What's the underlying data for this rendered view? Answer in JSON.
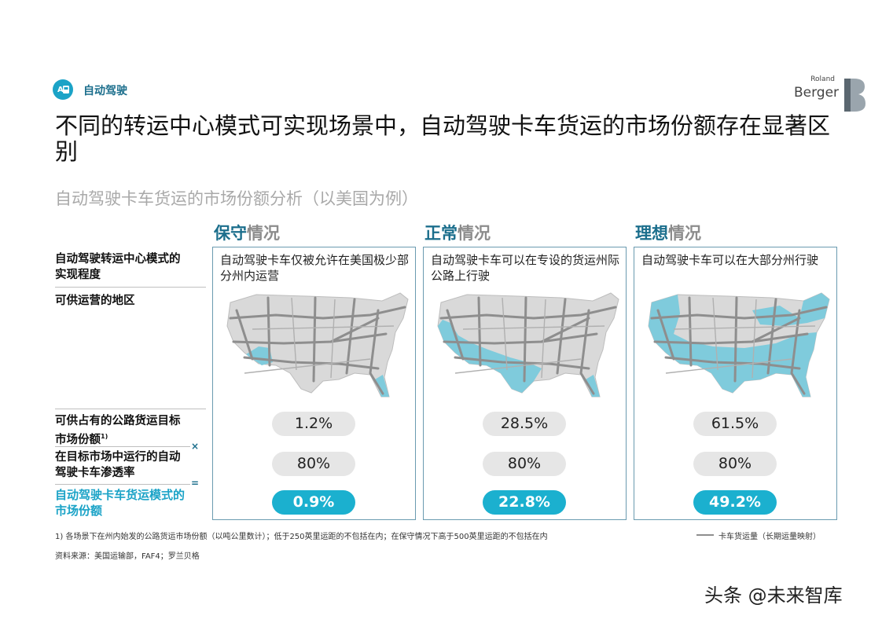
{
  "header": {
    "tag_label": "自动驾驶",
    "logo_small": "Roland",
    "logo_big": "Berger",
    "title": "不同的转运中心模式可实现场景中，自动驾驶卡车货运的市场份额存在显著区别",
    "subtitle": "自动驾驶卡车货运的市场份额分析（以美国为例）"
  },
  "row_labels": {
    "implementation": "自动驾驶转运中心模式的实现程度",
    "regions": "可供运营的地区",
    "target_share": "可供占有的公路货运目标市场份额",
    "target_share_sup": "1)",
    "penetration": "在目标市场中运行的自动驾驶卡车渗透率",
    "result": "自动驾驶卡车货运模式的市场份额"
  },
  "operators": {
    "times": "×",
    "equals": "="
  },
  "scenarios": [
    {
      "name_accent": "保守",
      "name_rest": "情况",
      "desc": "自动驾驶卡车仅被允许在美国极少部分州内运营",
      "target_share": "1.2%",
      "penetration": "80%",
      "result": "0.9%"
    },
    {
      "name_accent": "正常",
      "name_rest": "情况",
      "desc": "自动驾驶卡车可以在专设的货运州际公路上行驶",
      "target_share": "28.5%",
      "penetration": "80%",
      "result": "22.8%"
    },
    {
      "name_accent": "理想",
      "name_rest": "情况",
      "desc": "自动驾驶卡车可以在大部分州行驶",
      "target_share": "61.5%",
      "penetration": "80%",
      "result": "49.2%"
    }
  ],
  "footer": {
    "note": "1) 各场景下在州内始发的公路货运市场份额（以吨公里数计）；低于250英里运距的不包括在内；在保守情况下高于500英里运距的不包括在内",
    "source": "资料来源：美国运输部，FAF4；罗兰贝格",
    "legend": "卡车货运量（长期运量映射）"
  },
  "watermark": "头条 @未来智库",
  "colors": {
    "accent": "#1b6e8c",
    "highlight": "#1bb0cf",
    "map_fill": "#7fcbdc",
    "map_base": "#d9d9d9"
  }
}
